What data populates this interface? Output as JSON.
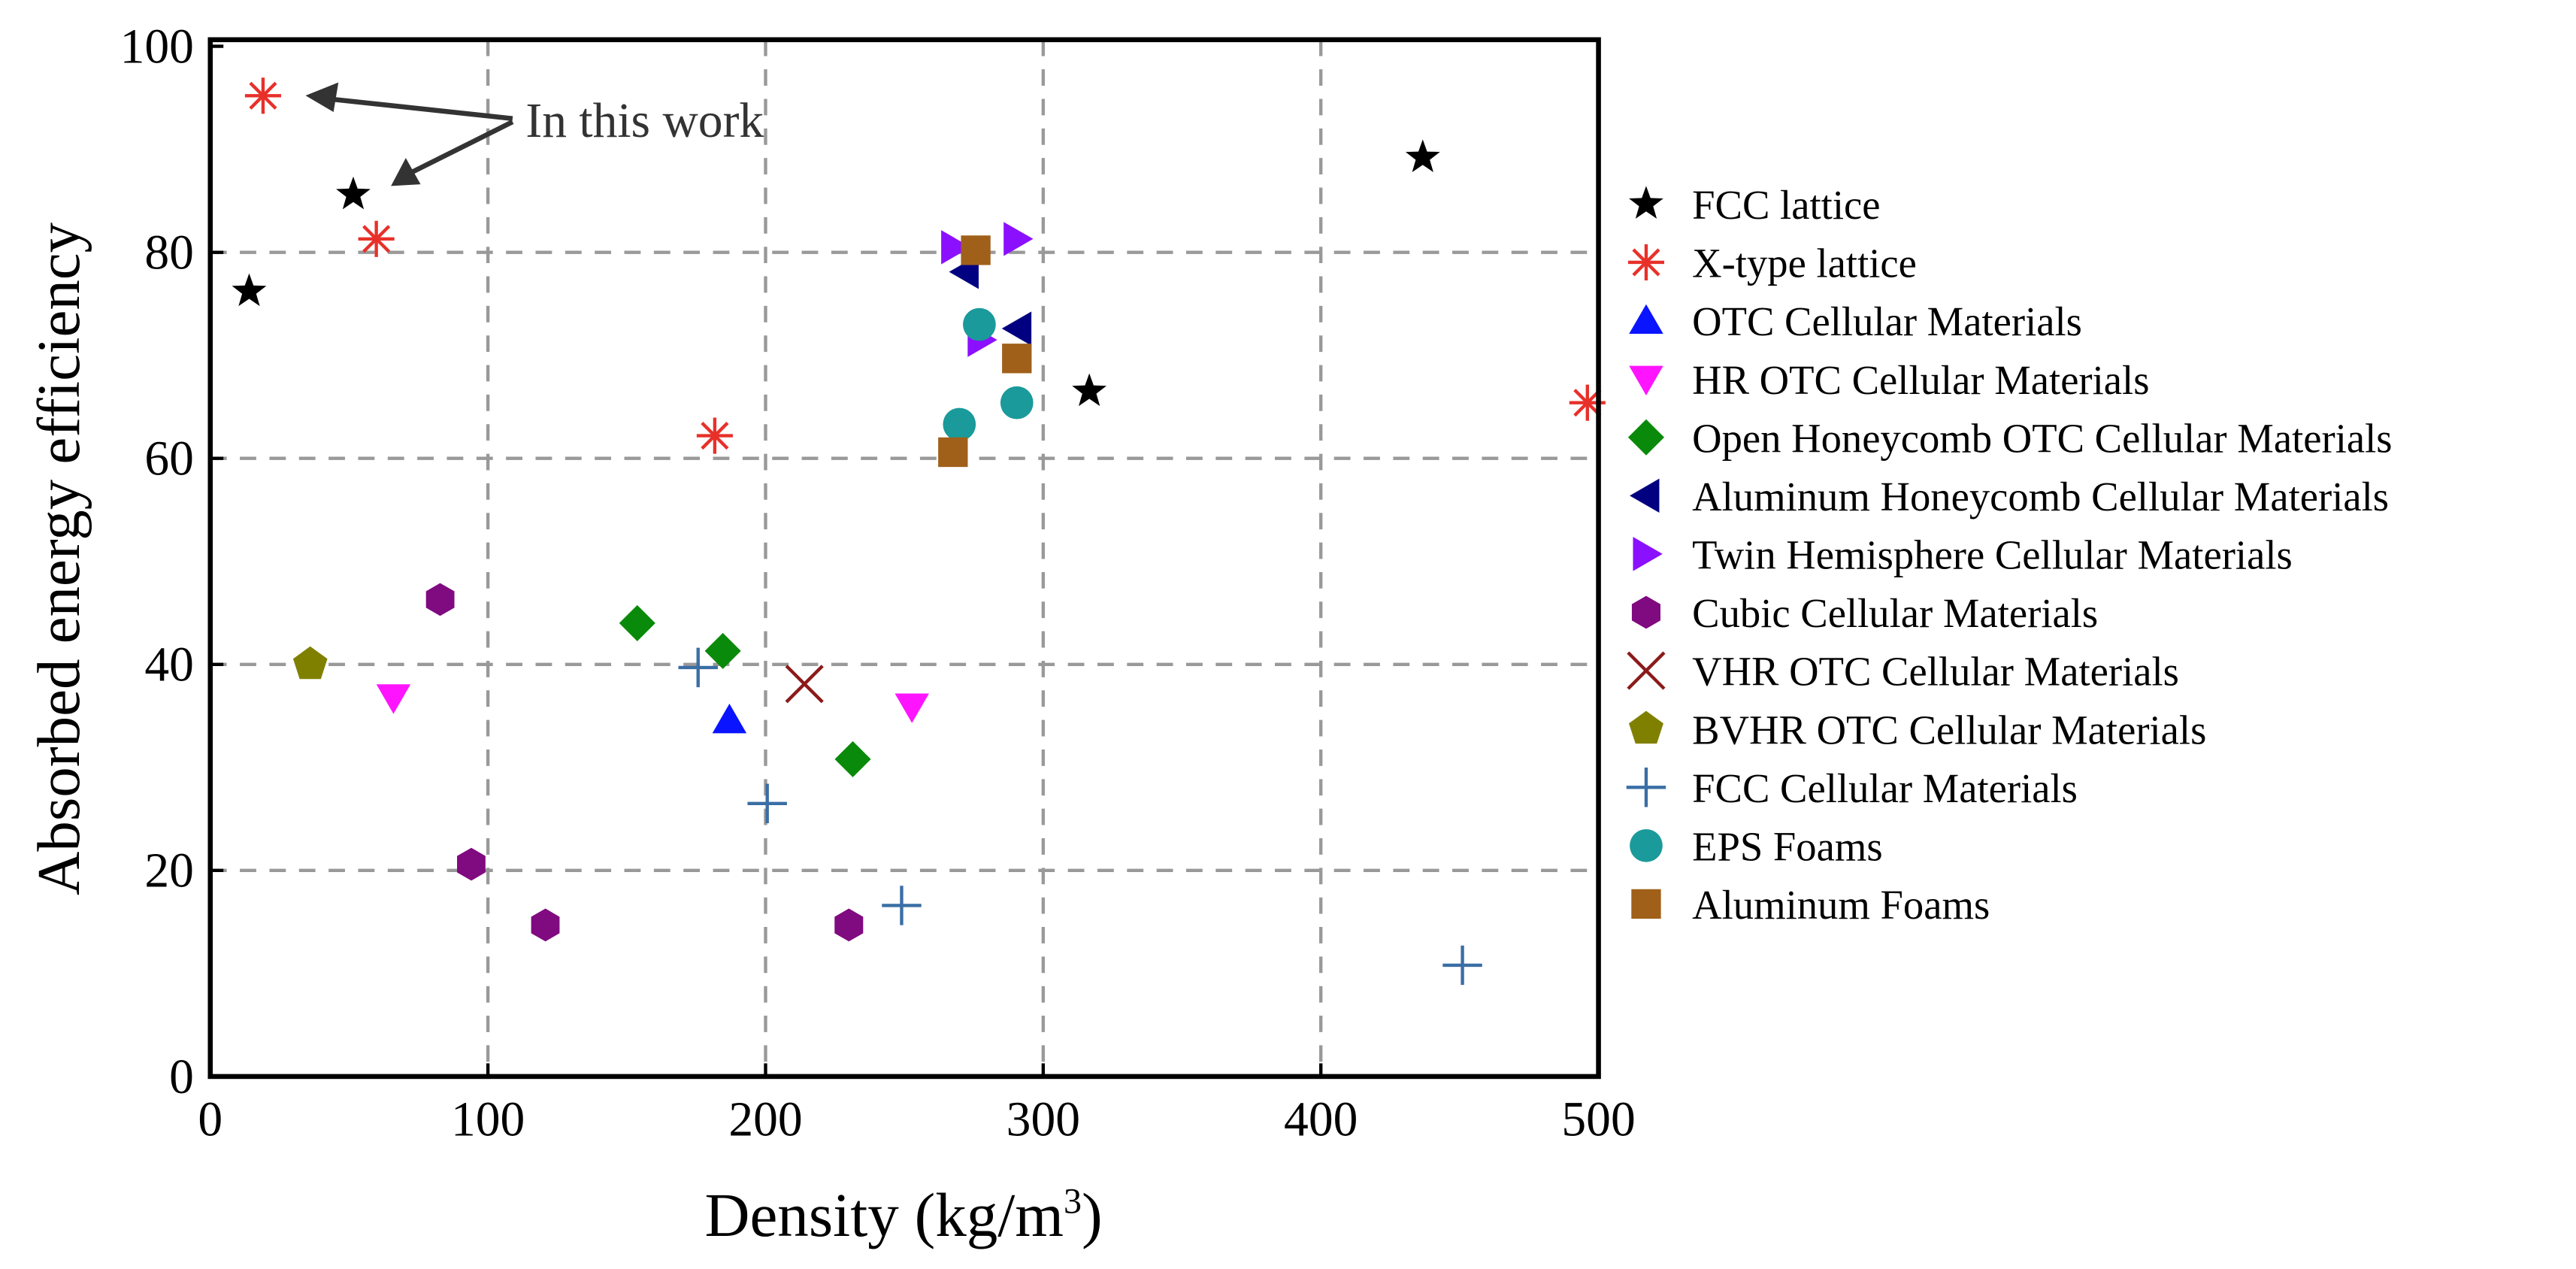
{
  "chart_data": {
    "type": "scatter",
    "title": "",
    "xlabel": "Density (kg/m",
    "xlabel_sup": "3",
    "xlabel_end": ")",
    "ylabel": "Absorbed energy efficiency",
    "xlim": [
      0,
      500
    ],
    "ylim": [
      0,
      100
    ],
    "xticks": [
      "0",
      "100",
      "200",
      "300",
      "400",
      "500"
    ],
    "yticks": [
      "0",
      "20",
      "40",
      "60",
      "80",
      "100"
    ],
    "grid": true,
    "legend_position": "right-outside",
    "annotation": "In this work",
    "series": [
      {
        "name": "FCC lattice",
        "marker": "star",
        "color": "#000000",
        "points": [
          [
            14,
            76.2
          ],
          [
            51.5,
            85.6
          ],
          [
            316.6,
            66.5
          ],
          [
            436.7,
            89.2
          ]
        ]
      },
      {
        "name": "X-type lattice",
        "marker": "asterisk",
        "color": "#e8302a",
        "points": [
          [
            19,
            95.2
          ],
          [
            59.8,
            81.3
          ],
          [
            181.7,
            62.2
          ],
          [
            496,
            65.4
          ]
        ]
      },
      {
        "name": "OTC Cellular Materials",
        "marker": "triangle-up",
        "color": "#0a14ff",
        "points": [
          [
            187,
            34.6
          ]
        ]
      },
      {
        "name": "HR OTC Cellular Materials",
        "marker": "triangle-down",
        "color": "#ff14ff",
        "points": [
          [
            66,
            36.8
          ],
          [
            252.7,
            35.9
          ]
        ]
      },
      {
        "name": "Open Honeycomb OTC Cellular Materials",
        "marker": "diamond",
        "color": "#0a8a0a",
        "points": [
          [
            153.8,
            44
          ],
          [
            184.6,
            41.3
          ],
          [
            231.4,
            30.8
          ]
        ]
      },
      {
        "name": "Aluminum Honeycomb Cellular Materials",
        "marker": "triangle-left",
        "color": "#000080",
        "points": [
          [
            272,
            78.1
          ],
          [
            291,
            72.6
          ]
        ]
      },
      {
        "name": "Twin Hemisphere Cellular Materials",
        "marker": "triangle-right",
        "color": "#8b10ff",
        "points": [
          [
            268,
            80.5
          ],
          [
            290.5,
            81.3
          ],
          [
            277.5,
            71.5
          ]
        ]
      },
      {
        "name": "Cubic Cellular Materials",
        "marker": "hexagon",
        "color": "#800a80",
        "points": [
          [
            82.8,
            46.3
          ],
          [
            94,
            20.6
          ],
          [
            120.7,
            14.7
          ],
          [
            230,
            14.7
          ]
        ]
      },
      {
        "name": "VHR OTC Cellular Materials",
        "marker": "x",
        "color": "#8b1a1a",
        "points": [
          [
            214,
            38.1
          ]
        ]
      },
      {
        "name": "BVHR OTC Cellular Materials",
        "marker": "pentagon",
        "color": "#808000",
        "points": [
          [
            36,
            40
          ]
        ]
      },
      {
        "name": "FCC Cellular Materials",
        "marker": "plus",
        "color": "#3a6ea5",
        "points": [
          [
            175.7,
            39.7
          ],
          [
            200.6,
            26.5
          ],
          [
            249,
            16.6
          ],
          [
            451,
            10.8
          ]
        ]
      },
      {
        "name": "EPS Foams",
        "marker": "circle",
        "color": "#1a9a9a",
        "points": [
          [
            277,
            73
          ],
          [
            269.8,
            63.3
          ],
          [
            290.5,
            65.4
          ]
        ]
      },
      {
        "name": "Aluminum Foams",
        "marker": "square",
        "color": "#a0601a",
        "points": [
          [
            275.7,
            80.2
          ],
          [
            290.5,
            69.7
          ],
          [
            267.5,
            60.6
          ]
        ]
      }
    ]
  }
}
